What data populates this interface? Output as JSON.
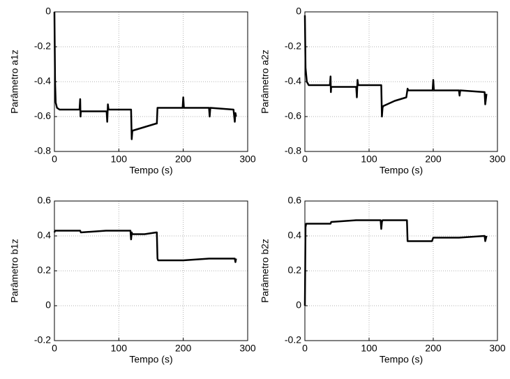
{
  "chart_data": [
    {
      "type": "line",
      "ylabel": "Parâmetro a1z",
      "xlabel": "Tempo (s)",
      "color": "#000000",
      "grid": true,
      "xlim": [
        0,
        300
      ],
      "xticks": [
        0,
        100,
        200,
        300
      ],
      "ylim": [
        -0.8,
        0
      ],
      "yticks": [
        -0.8,
        -0.6,
        -0.4,
        -0.2,
        0
      ],
      "x": [
        0,
        1,
        2,
        4,
        8,
        39,
        40,
        40.5,
        41,
        81,
        82,
        83,
        84,
        119,
        120,
        121,
        122,
        140,
        158,
        159,
        160,
        161,
        199,
        200,
        201,
        240,
        241,
        242,
        278,
        280,
        281,
        282
      ],
      "values": [
        0,
        -0.4,
        -0.52,
        -0.55,
        -0.56,
        -0.56,
        -0.5,
        -0.6,
        -0.57,
        -0.57,
        -0.63,
        -0.53,
        -0.56,
        -0.56,
        -0.73,
        -0.68,
        -0.68,
        -0.66,
        -0.64,
        -0.64,
        -0.55,
        -0.55,
        -0.55,
        -0.49,
        -0.55,
        -0.55,
        -0.6,
        -0.55,
        -0.56,
        -0.63,
        -0.58,
        -0.6
      ]
    },
    {
      "type": "line",
      "ylabel": "Parâmetro a2z",
      "xlabel": "Tempo (s)",
      "color": "#000000",
      "grid": true,
      "xlim": [
        0,
        300
      ],
      "xticks": [
        0,
        100,
        200,
        300
      ],
      "ylim": [
        -0.8,
        0
      ],
      "yticks": [
        -0.8,
        -0.6,
        -0.4,
        -0.2,
        0
      ],
      "x": [
        0,
        1,
        3,
        6,
        39,
        40,
        40.5,
        41,
        80,
        81,
        82,
        83,
        119,
        120,
        121,
        122,
        140,
        158,
        160,
        161,
        199,
        200,
        201,
        240,
        241,
        242,
        280,
        281,
        283
      ],
      "values": [
        -0.02,
        -0.32,
        -0.4,
        -0.42,
        -0.42,
        -0.37,
        -0.46,
        -0.43,
        -0.43,
        -0.49,
        -0.39,
        -0.42,
        -0.42,
        -0.6,
        -0.55,
        -0.54,
        -0.51,
        -0.49,
        -0.44,
        -0.45,
        -0.45,
        -0.39,
        -0.45,
        -0.45,
        -0.48,
        -0.45,
        -0.46,
        -0.53,
        -0.47
      ]
    },
    {
      "type": "line",
      "ylabel": "Parâmetro b1z",
      "xlabel": "Tempo (s)",
      "color": "#000000",
      "grid": true,
      "xlim": [
        0,
        300
      ],
      "xticks": [
        0,
        100,
        200,
        300
      ],
      "ylim": [
        -0.2,
        0.6
      ],
      "yticks": [
        -0.2,
        0,
        0.2,
        0.4,
        0.6
      ],
      "x": [
        0,
        1,
        40,
        41,
        80,
        118,
        119,
        120,
        121,
        140,
        158,
        159,
        160,
        161,
        200,
        240,
        280,
        281,
        282
      ],
      "values": [
        0.42,
        0.43,
        0.43,
        0.42,
        0.43,
        0.43,
        0.38,
        0.42,
        0.41,
        0.41,
        0.42,
        0.42,
        0.27,
        0.26,
        0.26,
        0.27,
        0.27,
        0.25,
        0.27
      ]
    },
    {
      "type": "line",
      "ylabel": "Parâmetro b2z",
      "xlabel": "Tempo (s)",
      "color": "#000000",
      "grid": true,
      "xlim": [
        0,
        300
      ],
      "xticks": [
        0,
        100,
        200,
        300
      ],
      "ylim": [
        -0.2,
        0.6
      ],
      "yticks": [
        -0.2,
        0,
        0.2,
        0.4,
        0.6
      ],
      "x": [
        0,
        1,
        2,
        40,
        41,
        80,
        118,
        119,
        120,
        121,
        158,
        159,
        160,
        161,
        198,
        200,
        240,
        280,
        281,
        283
      ],
      "values": [
        0,
        0.45,
        0.47,
        0.47,
        0.48,
        0.49,
        0.49,
        0.44,
        0.48,
        0.49,
        0.49,
        0.49,
        0.37,
        0.37,
        0.37,
        0.39,
        0.39,
        0.4,
        0.37,
        0.4
      ]
    }
  ]
}
